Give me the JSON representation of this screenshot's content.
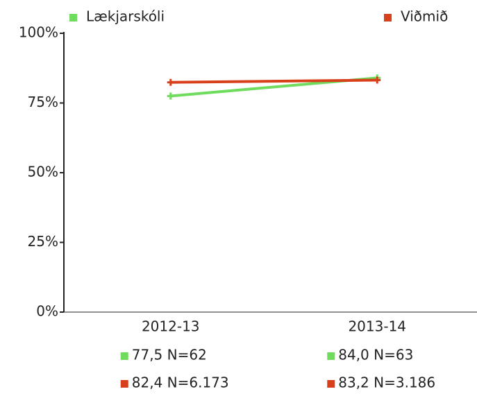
{
  "chart_data": {
    "type": "line",
    "categories": [
      "2012-13",
      "2013-14"
    ],
    "series": [
      {
        "name": "Lækjarskóli",
        "color": "#6fdc5e",
        "values": [
          77.5,
          84.0
        ],
        "value_labels": [
          "77,5 N=62",
          "84,0 N=63"
        ]
      },
      {
        "name": "Viðmið",
        "color": "#d8401c",
        "values": [
          82.4,
          83.2
        ],
        "value_labels": [
          "82,4 N=6.173",
          "83,2 N=3.186"
        ]
      }
    ],
    "ylim": [
      0,
      100
    ],
    "yticks": [
      {
        "value": 0,
        "label": "0%"
      },
      {
        "value": 25,
        "label": "25%"
      },
      {
        "value": 50,
        "label": "50%"
      },
      {
        "value": 75,
        "label": "75%"
      },
      {
        "value": 100,
        "label": "100%"
      }
    ],
    "grid": false
  }
}
